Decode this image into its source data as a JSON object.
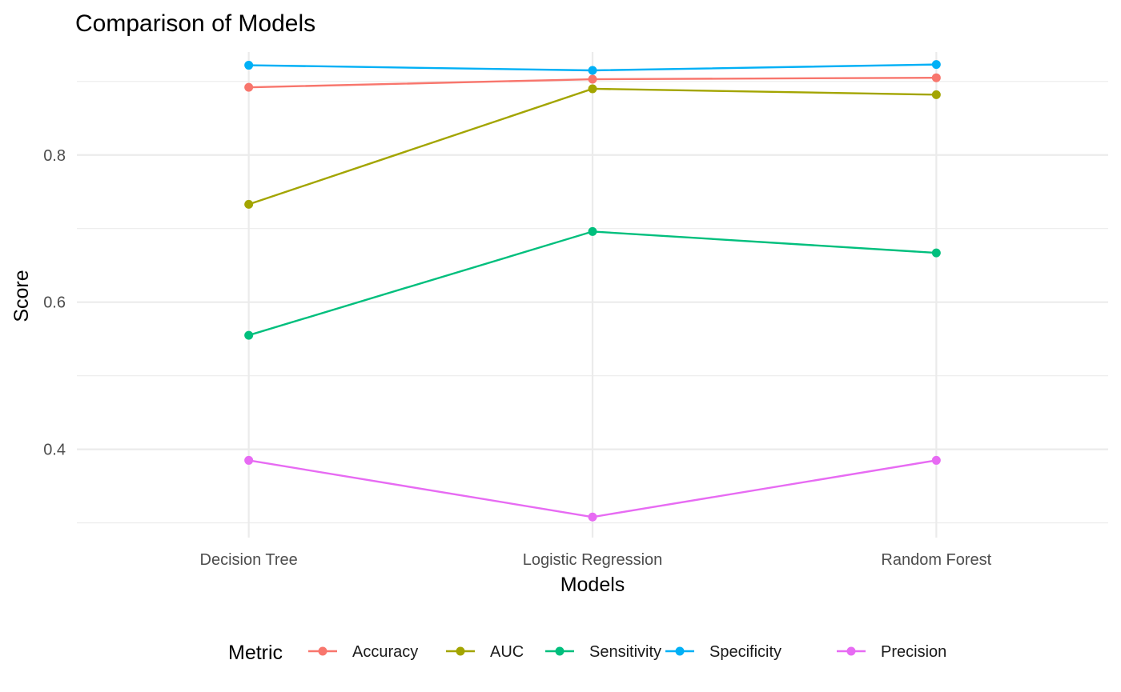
{
  "chart_data": {
    "type": "line",
    "title": "Comparison of Models",
    "xlabel": "Models",
    "ylabel": "Score",
    "categories": [
      "Decision Tree",
      "Logistic Regression",
      "Random Forest"
    ],
    "y_ticks": [
      0.4,
      0.6,
      0.8
    ],
    "y_tick_labels": [
      "0.4",
      "0.6",
      "0.8"
    ],
    "ylim": [
      0.28,
      0.94
    ],
    "grid": true,
    "legend": {
      "title": "Metric",
      "position": "bottom"
    },
    "series": [
      {
        "name": "Accuracy",
        "color": "#F8766D",
        "values": [
          0.892,
          0.903,
          0.905
        ]
      },
      {
        "name": "AUC",
        "color": "#A3A500",
        "values": [
          0.733,
          0.89,
          0.882
        ]
      },
      {
        "name": "Sensitivity",
        "color": "#00BF7D",
        "values": [
          0.555,
          0.696,
          0.667
        ]
      },
      {
        "name": "Specificity",
        "color": "#00B0F6",
        "values": [
          0.922,
          0.915,
          0.923
        ]
      },
      {
        "name": "Precision",
        "color": "#E76BF3",
        "values": [
          0.385,
          0.308,
          0.385
        ]
      }
    ]
  }
}
